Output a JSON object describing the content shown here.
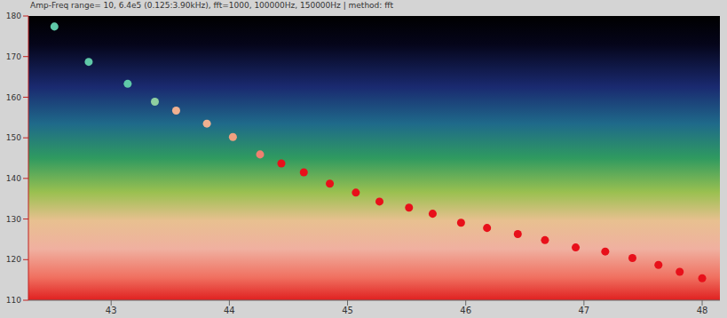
{
  "chart_data": {
    "type": "scatter",
    "title": "Amp-Freq range= 10, 6.4e5 (0.125:3.90kHz), fft=1000, 100000Hz, 150000Hz | method: fft",
    "x": [
      42.52,
      42.81,
      43.14,
      43.37,
      43.55,
      43.81,
      44.03,
      44.26,
      44.44,
      44.63,
      44.85,
      45.07,
      45.27,
      45.52,
      45.72,
      45.96,
      46.18,
      46.44,
      46.67,
      46.93,
      47.18,
      47.41,
      47.63,
      47.81,
      48.0
    ],
    "values": [
      177.4,
      168.7,
      163.3,
      158.9,
      156.7,
      153.5,
      150.2,
      145.9,
      143.7,
      141.5,
      138.7,
      136.5,
      134.3,
      132.8,
      131.3,
      129.1,
      127.8,
      126.3,
      124.8,
      123.0,
      122.0,
      120.4,
      118.7,
      117.0,
      115.4
    ],
    "colors": [
      "#5fc9a8",
      "#5fc9a8",
      "#5fc9a8",
      "#8fd0a0",
      "#f0b090",
      "#f0b090",
      "#f0a080",
      "#f08070",
      "#e8101a",
      "#e8101a",
      "#e8101a",
      "#e8101a",
      "#e8101a",
      "#e8101a",
      "#e8101a",
      "#e8101a",
      "#e8101a",
      "#e8101a",
      "#e8101a",
      "#e8101a",
      "#e8101a",
      "#e8101a",
      "#e8101a",
      "#e8101a",
      "#e8101a"
    ],
    "xlim": [
      42.3,
      48.15
    ],
    "xticks": [
      43,
      44,
      45,
      46,
      47,
      48
    ],
    "ylim": [
      110,
      180
    ],
    "yticks": [
      110,
      120,
      130,
      140,
      150,
      160,
      170,
      180
    ],
    "marker": "circle"
  }
}
